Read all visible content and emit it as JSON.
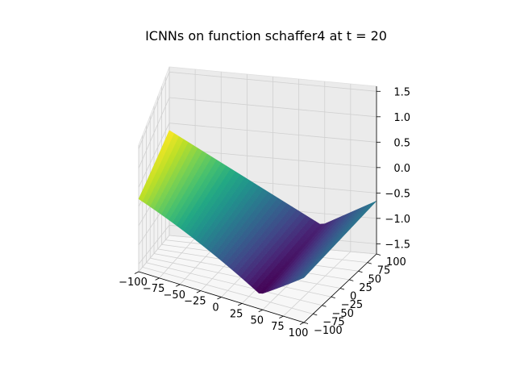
{
  "chart_data": {
    "type": "surface3d",
    "title": "ICNNs on function schaffer4 at t = 20",
    "xlabel": "",
    "ylabel": "",
    "zlabel": "",
    "xlim": [
      -100,
      100
    ],
    "ylim": [
      -100,
      100
    ],
    "zlim": [
      -1.7,
      1.6
    ],
    "x_ticks": [
      -100,
      -75,
      -50,
      -25,
      0,
      25,
      50,
      75,
      100
    ],
    "y_ticks": [
      -100,
      -75,
      -50,
      -25,
      0,
      25,
      50,
      75,
      100
    ],
    "z_ticks": [
      -1.5,
      -1.0,
      -0.5,
      0.0,
      0.5,
      1.0,
      1.5
    ],
    "x_tick_labels": [
      "−100",
      "−75",
      "−50",
      "−25",
      "0",
      "25",
      "50",
      "75",
      "100"
    ],
    "y_tick_labels": [
      "−100",
      "−75",
      "−50",
      "−25",
      "0",
      "25",
      "50",
      "75",
      "100"
    ],
    "z_tick_labels": [
      "−1.5",
      "−1.0",
      "−0.5",
      "0.0",
      "0.5",
      "1.0",
      "1.5"
    ],
    "colormap": "viridis",
    "grid": true,
    "surface": {
      "form": "z = 0.0108 * |x - 47| + 0.0008 * y - 1.31",
      "valley_x": 47,
      "slope_per_unit_x": 0.0108,
      "slope_per_unit_y": 0.0008,
      "z_at_valley_y0": -1.31
    }
  }
}
